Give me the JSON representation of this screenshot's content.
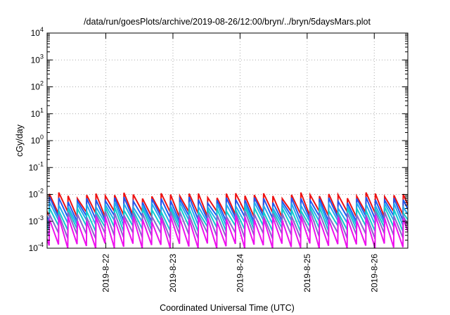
{
  "chart_data": {
    "type": "line",
    "title": "/data/run/goesPlots/archive/2019-08-26/12:00/bryn/../bryn/5daysMars.plot",
    "xlabel": "Coordinated Universal Time (UTC)",
    "ylabel": "cGy/day",
    "y_scale": "log",
    "ylim": [
      0.0001,
      10000
    ],
    "y_ticks": [
      {
        "base": "10",
        "exp": "-4",
        "value": 0.0001
      },
      {
        "base": "10",
        "exp": "-3",
        "value": 0.001
      },
      {
        "base": "10",
        "exp": "-2",
        "value": 0.01
      },
      {
        "base": "10",
        "exp": "-1",
        "value": 0.1
      },
      {
        "base": "10",
        "exp": "0",
        "value": 1
      },
      {
        "base": "10",
        "exp": "1",
        "value": 10
      },
      {
        "base": "10",
        "exp": "2",
        "value": 100
      },
      {
        "base": "10",
        "exp": "3",
        "value": 1000
      },
      {
        "base": "10",
        "exp": "4",
        "value": 10000
      }
    ],
    "xlim": [
      "2019-08-21T03:00",
      "2019-08-26T12:00"
    ],
    "x_ticks": [
      {
        "label": "2019-8-22",
        "value": "2019-08-22"
      },
      {
        "label": "2019-8-23",
        "value": "2019-08-23"
      },
      {
        "label": "2019-8-24",
        "value": "2019-08-24"
      },
      {
        "label": "2019-8-25",
        "value": "2019-08-25"
      },
      {
        "label": "2019-8-26",
        "value": "2019-08-26"
      }
    ],
    "grid": true,
    "legend": "none",
    "pattern": {
      "shape": "sawtooth",
      "period_hours": 3.33,
      "first_peak": "2019-08-21T03:50"
    },
    "series": [
      {
        "color": "#ee1111",
        "peak": 0.0095,
        "trough": 0.0019
      },
      {
        "color": "#2255ee",
        "peak": 0.0065,
        "trough": 0.0013
      },
      {
        "color": "#22aaee",
        "peak": 0.0042,
        "trough": 0.0009
      },
      {
        "color": "#11cccc",
        "peak": 0.0028,
        "trough": 0.00055
      },
      {
        "color": "#8866cc",
        "peak": 0.0019,
        "trough": 0.0003
      },
      {
        "color": "#ee11ee",
        "peak": 0.0013,
        "trough": 0.00012
      }
    ]
  }
}
